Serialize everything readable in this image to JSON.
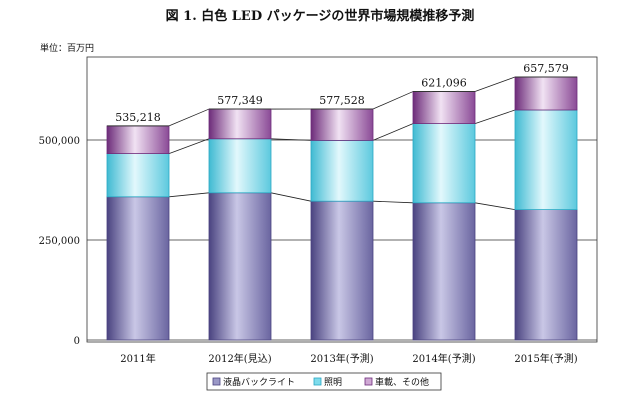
{
  "chart_data": {
    "type": "bar",
    "stacked": true,
    "title": "図 1. 白色 LED パッケージの世界市場規模推移予測",
    "unit_label": "単位：百万円",
    "categories": [
      "2011年",
      "2012年(見込)",
      "2013年(予測)",
      "2014年(予測)",
      "2015年(予測)"
    ],
    "series": [
      {
        "name": "液晶バックライト",
        "values": [
          358000,
          368000,
          347000,
          343000,
          326000
        ]
      },
      {
        "name": "照明",
        "values": [
          108000,
          135000,
          152000,
          198000,
          249000
        ]
      },
      {
        "name": "車載、その他",
        "values": [
          69218,
          74349,
          78528,
          80096,
          82579
        ]
      }
    ],
    "totals": [
      "535,218",
      "577,349",
      "577,528",
      "621,096",
      "657,579"
    ],
    "y_ticks": [
      "0",
      "250,000",
      "500,000"
    ],
    "y_tick_values": [
      0,
      250000,
      500000
    ],
    "ylim": [
      0,
      750000
    ],
    "grid": true,
    "legend_position": "bottom",
    "colors": {
      "series": [
        "#9a98c6",
        "#7fdcec",
        "#cfa8d4"
      ],
      "series_dark": [
        "#4a4380",
        "#2aa8c4",
        "#6d2c7a"
      ]
    }
  }
}
